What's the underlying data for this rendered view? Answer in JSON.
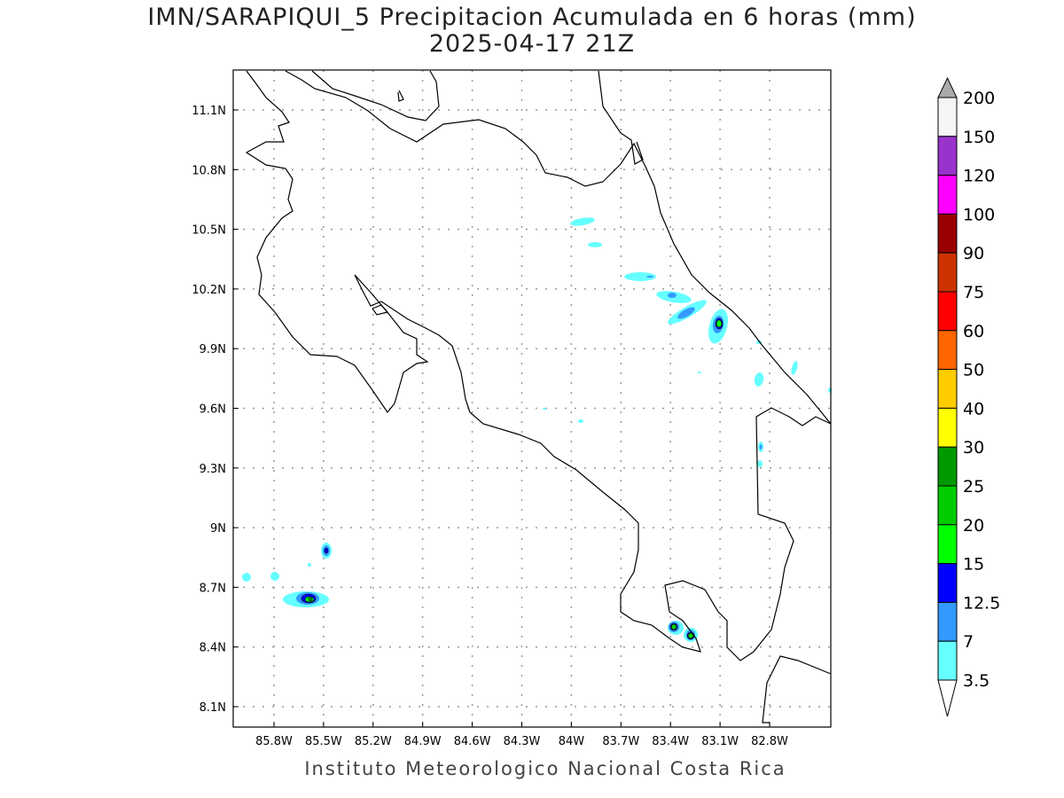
{
  "title": "IMN/SARAPIQUI_5 Precipitacion Acumulada en 6 horas (mm)",
  "subtitle": "2025-04-17 21Z",
  "credit": "Instituto Meteorologico Nacional Costa Rica",
  "axes": {
    "lon_ticks": [
      "85.8W",
      "85.5W",
      "85.2W",
      "84.9W",
      "84.6W",
      "84.3W",
      "84W",
      "83.7W",
      "83.4W",
      "83.1W",
      "82.8W"
    ],
    "lat_ticks": [
      "11.1N",
      "10.8N",
      "10.5N",
      "10.2N",
      "9.9N",
      "9.6N",
      "9.3N",
      "9N",
      "8.7N",
      "8.4N",
      "8.1N"
    ]
  },
  "colorbar": {
    "labels": [
      "200",
      "150",
      "120",
      "100",
      "90",
      "75",
      "60",
      "50",
      "40",
      "30",
      "25",
      "20",
      "15",
      "12.5",
      "7",
      "3.5"
    ],
    "colors": [
      "#f5f5f5",
      "#9933cc",
      "#ff00ff",
      "#990000",
      "#cc3300",
      "#ff0000",
      "#ff6600",
      "#ffcc00",
      "#ffff00",
      "#009900",
      "#00cc00",
      "#00ff00",
      "#0000ff",
      "#3399ff",
      "#66ffff"
    ],
    "over_color": "#aaaaaa",
    "under_color": "#ffffff"
  }
}
